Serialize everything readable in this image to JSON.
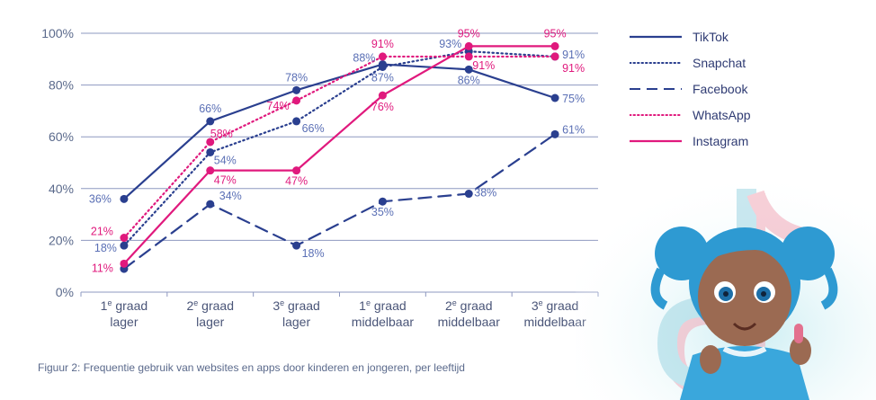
{
  "caption": "Figuur 2: Frequentie gebruik van websites en apps door kinderen en jongeren, per leeftijd",
  "chart_data": {
    "type": "line",
    "title": "",
    "xlabel": "",
    "ylabel": "",
    "ylim": [
      0,
      100
    ],
    "yticks": [
      "0%",
      "20%",
      "40%",
      "60%",
      "80%",
      "100%"
    ],
    "grid": true,
    "legend_position": "right",
    "categories": [
      [
        "1e graad",
        "lager"
      ],
      [
        "2e graad",
        "lager"
      ],
      [
        "3e graad",
        "lager"
      ],
      [
        "1e graad",
        "middelbaar"
      ],
      [
        "2e graad",
        "middelbaar"
      ],
      [
        "3e graad",
        "middelbaar"
      ]
    ],
    "series": [
      {
        "name": "TikTok",
        "values": [
          36,
          66,
          78,
          88,
          86,
          75
        ],
        "color": "#2a3f8f",
        "style": "solid"
      },
      {
        "name": "Snapchat",
        "values": [
          18,
          54,
          66,
          87,
          93,
          91
        ],
        "color": "#2a3f8f",
        "style": "dotted"
      },
      {
        "name": "Facebook",
        "values": [
          9,
          34,
          18,
          35,
          38,
          61
        ],
        "color": "#2a3f8f",
        "style": "dashed"
      },
      {
        "name": "WhatsApp",
        "values": [
          21,
          58,
          74,
          91,
          91,
          91
        ],
        "color": "#e0197d",
        "style": "dotted"
      },
      {
        "name": "Instagram",
        "values": [
          11,
          47,
          47,
          76,
          95,
          95
        ],
        "color": "#e0197d",
        "style": "solid"
      }
    ],
    "data_labels": [
      {
        "series": "TikTok",
        "i": 0,
        "text": "36%"
      },
      {
        "series": "TikTok",
        "i": 1,
        "text": "66%"
      },
      {
        "series": "TikTok",
        "i": 2,
        "text": "78%"
      },
      {
        "series": "TikTok",
        "i": 3,
        "text": "88%"
      },
      {
        "series": "TikTok",
        "i": 4,
        "text": "86%"
      },
      {
        "series": "TikTok",
        "i": 5,
        "text": "75%"
      },
      {
        "series": "Snapchat",
        "i": 0,
        "text": "18%"
      },
      {
        "series": "Snapchat",
        "i": 1,
        "text": "54%"
      },
      {
        "series": "Snapchat",
        "i": 2,
        "text": "66%"
      },
      {
        "series": "Snapchat",
        "i": 3,
        "text": "87%"
      },
      {
        "series": "Snapchat",
        "i": 4,
        "text": "93%"
      },
      {
        "series": "Snapchat",
        "i": 5,
        "text": "91%"
      },
      {
        "series": "Facebook",
        "i": 1,
        "text": "34%"
      },
      {
        "series": "Facebook",
        "i": 2,
        "text": "18%"
      },
      {
        "series": "Facebook",
        "i": 3,
        "text": "35%"
      },
      {
        "series": "Facebook",
        "i": 4,
        "text": "38%"
      },
      {
        "series": "Facebook",
        "i": 5,
        "text": "61%"
      },
      {
        "series": "WhatsApp",
        "i": 0,
        "text": "21%"
      },
      {
        "series": "WhatsApp",
        "i": 1,
        "text": "58%"
      },
      {
        "series": "WhatsApp",
        "i": 2,
        "text": "74%"
      },
      {
        "series": "WhatsApp",
        "i": 3,
        "text": "91%"
      },
      {
        "series": "WhatsApp",
        "i": 4,
        "text": "91%"
      },
      {
        "series": "WhatsApp",
        "i": 5,
        "text": "91%"
      },
      {
        "series": "Instagram",
        "i": 0,
        "text": "11%"
      },
      {
        "series": "Instagram",
        "i": 1,
        "text": "47%"
      },
      {
        "series": "Instagram",
        "i": 2,
        "text": "47%"
      },
      {
        "series": "Instagram",
        "i": 3,
        "text": "76%"
      },
      {
        "series": "Instagram",
        "i": 4,
        "text": "95%"
      },
      {
        "series": "Instagram",
        "i": 5,
        "text": "95%"
      }
    ]
  }
}
